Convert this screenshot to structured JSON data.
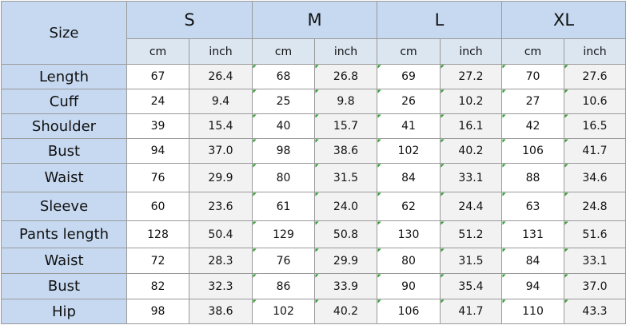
{
  "corner_label": "Size",
  "sizes": [
    "S",
    "M",
    "L",
    "XL"
  ],
  "units": [
    "cm",
    "inch"
  ],
  "rows": [
    {
      "label": "Length",
      "values": [
        "67",
        "26.4",
        "68",
        "26.8",
        "69",
        "27.2",
        "70",
        "27.6"
      ]
    },
    {
      "label": "Cuff",
      "values": [
        "24",
        "9.4",
        "25",
        "9.8",
        "26",
        "10.2",
        "27",
        "10.6"
      ]
    },
    {
      "label": "Shoulder",
      "values": [
        "39",
        "15.4",
        "40",
        "15.7",
        "41",
        "16.1",
        "42",
        "16.5"
      ]
    },
    {
      "label": "Bust",
      "values": [
        "94",
        "37.0",
        "98",
        "38.6",
        "102",
        "40.2",
        "106",
        "41.7"
      ]
    },
    {
      "label": "Waist",
      "values": [
        "76",
        "29.9",
        "80",
        "31.5",
        "84",
        "33.1",
        "88",
        "34.6"
      ]
    },
    {
      "label": "Sleeve",
      "values": [
        "60",
        "23.6",
        "61",
        "24.0",
        "62",
        "24.4",
        "63",
        "24.8"
      ]
    },
    {
      "label": "Pants length",
      "values": [
        "128",
        "50.4",
        "129",
        "50.8",
        "130",
        "51.2",
        "131",
        "51.6"
      ]
    },
    {
      "label": "Waist",
      "values": [
        "72",
        "28.3",
        "76",
        "29.9",
        "80",
        "31.5",
        "84",
        "33.1"
      ]
    },
    {
      "label": "Bust",
      "values": [
        "82",
        "32.3",
        "86",
        "33.9",
        "90",
        "35.4",
        "94",
        "37.0"
      ]
    },
    {
      "label": "Hip",
      "values": [
        "98",
        "38.6",
        "102",
        "40.2",
        "106",
        "41.7",
        "110",
        "43.3"
      ]
    }
  ],
  "colors": {
    "header_blue": "#c6d9f1",
    "unit_row_blue": "#dce6f1",
    "inch_column_gray": "#f2f2f2",
    "cell_corner_mark": "#2e9b2e",
    "grid_line": "#9a9a9a"
  }
}
